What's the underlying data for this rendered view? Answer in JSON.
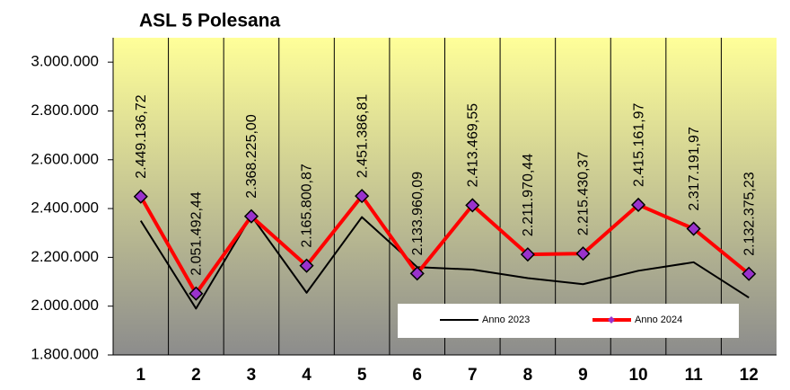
{
  "chart_data": {
    "type": "line",
    "title": "ASL 5 Polesana",
    "categories": [
      "1",
      "2",
      "3",
      "4",
      "5",
      "6",
      "7",
      "8",
      "9",
      "10",
      "11",
      "12"
    ],
    "series": [
      {
        "name": "Anno 2023",
        "color": "#000000",
        "values": [
          2350000,
          1990000,
          2370000,
          2055000,
          2365000,
          2160000,
          2150000,
          2115000,
          2090000,
          2145000,
          2180000,
          2035000
        ]
      },
      {
        "name": "Anno 2024",
        "color": "#ff0000",
        "marker_color": "#9932cc",
        "values": [
          2449136.72,
          2051492.44,
          2368225.0,
          2165800.87,
          2451386.81,
          2133960.09,
          2413469.55,
          2211970.44,
          2215430.37,
          2415161.97,
          2317191.97,
          2132375.23
        ],
        "value_labels": [
          "2.449.136,72",
          "2.051.492,44",
          "2.368.225,00",
          "2.165.800,87",
          "2.451.386,81",
          "2.133.960,09",
          "2.413.469,55",
          "2.211.970,44",
          "2.215.430,37",
          "2.415.161,97",
          "2.317.191,97",
          "2.132.375,23"
        ]
      }
    ],
    "ylim": [
      1800000,
      3100000
    ],
    "yticks": [
      {
        "value": 1800000,
        "label": "1.800.000"
      },
      {
        "value": 2000000,
        "label": "2.000.000"
      },
      {
        "value": 2200000,
        "label": "2.200.000"
      },
      {
        "value": 2400000,
        "label": "2.400.000"
      },
      {
        "value": 2600000,
        "label": "2.600.000"
      },
      {
        "value": 2800000,
        "label": "2.800.000"
      },
      {
        "value": 3000000,
        "label": "3.000.000"
      }
    ],
    "grid": true,
    "legend": "lower right"
  }
}
